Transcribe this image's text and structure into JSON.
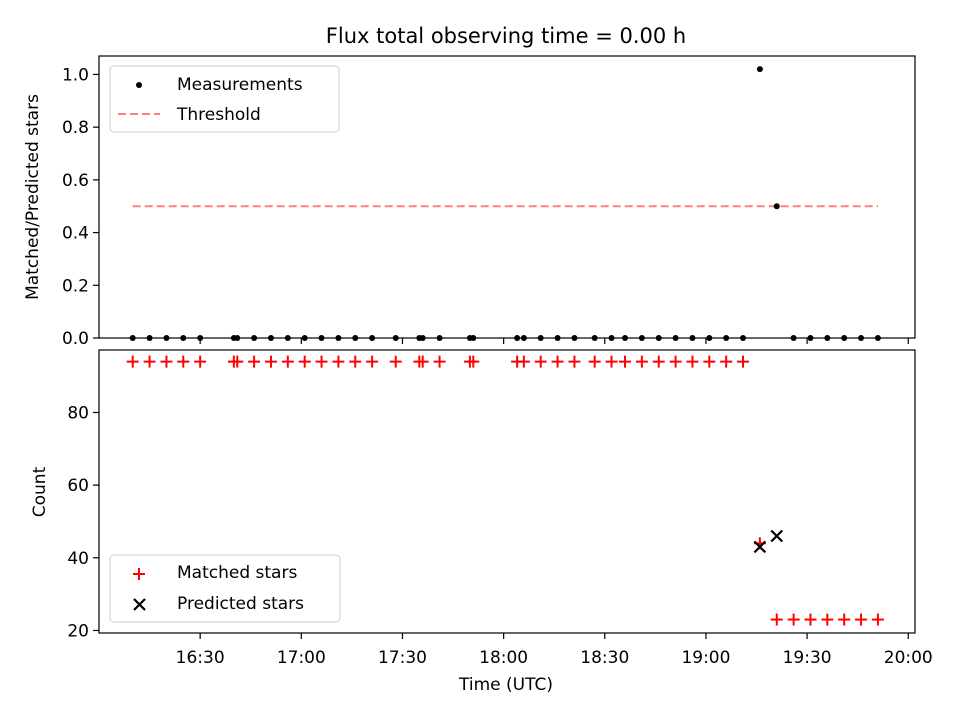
{
  "title": "Flux total observing time = 0.00 h",
  "chart_data": [
    {
      "type": "scatter",
      "ylabel": "Matched/Predicted stars",
      "ylim": [
        0,
        1.07
      ],
      "yticks": [
        0.0,
        0.2,
        0.4,
        0.6,
        0.8,
        1.0
      ],
      "xlim": [
        "16:00",
        "20:02"
      ],
      "legend_position": "upper-left",
      "series": [
        {
          "name": "Measurements",
          "color": "#000000",
          "marker": "dot",
          "x": [
            "16:10",
            "16:15",
            "16:20",
            "16:25",
            "16:30",
            "16:40",
            "16:41",
            "16:46",
            "16:51",
            "16:56",
            "17:01",
            "17:06",
            "17:11",
            "17:16",
            "17:21",
            "17:28",
            "17:35",
            "17:36",
            "17:41",
            "17:50",
            "17:51",
            "18:04",
            "18:06",
            "18:11",
            "18:16",
            "18:21",
            "18:27",
            "18:32",
            "18:36",
            "18:41",
            "18:46",
            "18:51",
            "18:56",
            "19:01",
            "19:06",
            "19:11",
            "19:16",
            "19:21",
            "19:26",
            "19:31",
            "19:36",
            "19:41",
            "19:46",
            "19:51"
          ],
          "y": [
            0,
            0,
            0,
            0,
            0,
            0,
            0,
            0,
            0,
            0,
            0,
            0,
            0,
            0,
            0,
            0,
            0,
            0,
            0,
            0,
            0,
            0,
            0,
            0,
            0,
            0,
            0,
            0,
            0,
            0,
            0,
            0,
            0,
            0,
            0,
            0,
            1.02,
            0.5,
            0,
            0,
            0,
            0,
            0,
            0
          ]
        },
        {
          "name": "Threshold",
          "color": "#ff7f7f",
          "line_style": "dashed",
          "x": [
            "16:10",
            "19:51"
          ],
          "y": [
            0.5,
            0.5
          ]
        }
      ]
    },
    {
      "type": "scatter",
      "xlabel": "Time (UTC)",
      "ylabel": "Count",
      "ylim": [
        19.3,
        97.2
      ],
      "yticks": [
        20,
        40,
        60,
        80
      ],
      "xlim": [
        "16:00",
        "20:02"
      ],
      "xticks": [
        "16:30",
        "17:00",
        "17:30",
        "18:00",
        "18:30",
        "19:00",
        "19:30",
        "20:00"
      ],
      "legend_position": "lower-left",
      "series": [
        {
          "name": "Matched stars",
          "color": "#ff0000",
          "marker": "plus",
          "x": [
            "16:10",
            "16:15",
            "16:20",
            "16:25",
            "16:30",
            "16:40",
            "16:41",
            "16:46",
            "16:51",
            "16:56",
            "17:01",
            "17:06",
            "17:11",
            "17:16",
            "17:21",
            "17:28",
            "17:35",
            "17:36",
            "17:41",
            "17:50",
            "17:51",
            "18:04",
            "18:06",
            "18:11",
            "18:16",
            "18:21",
            "18:27",
            "18:32",
            "18:36",
            "18:41",
            "18:46",
            "18:51",
            "18:56",
            "19:01",
            "19:06",
            "19:11",
            "19:16",
            "19:21",
            "19:26",
            "19:31",
            "19:36",
            "19:41",
            "19:46",
            "19:51"
          ],
          "y": [
            94,
            94,
            94,
            94,
            94,
            94,
            94,
            94,
            94,
            94,
            94,
            94,
            94,
            94,
            94,
            94,
            94,
            94,
            94,
            94,
            94,
            94,
            94,
            94,
            94,
            94,
            94,
            94,
            94,
            94,
            94,
            94,
            94,
            94,
            94,
            94,
            44,
            23,
            23,
            23,
            23,
            23,
            23,
            23
          ]
        },
        {
          "name": "Predicted stars",
          "color": "#000000",
          "marker": "x",
          "x": [
            "19:16",
            "19:21"
          ],
          "y": [
            43,
            46
          ]
        }
      ]
    }
  ]
}
